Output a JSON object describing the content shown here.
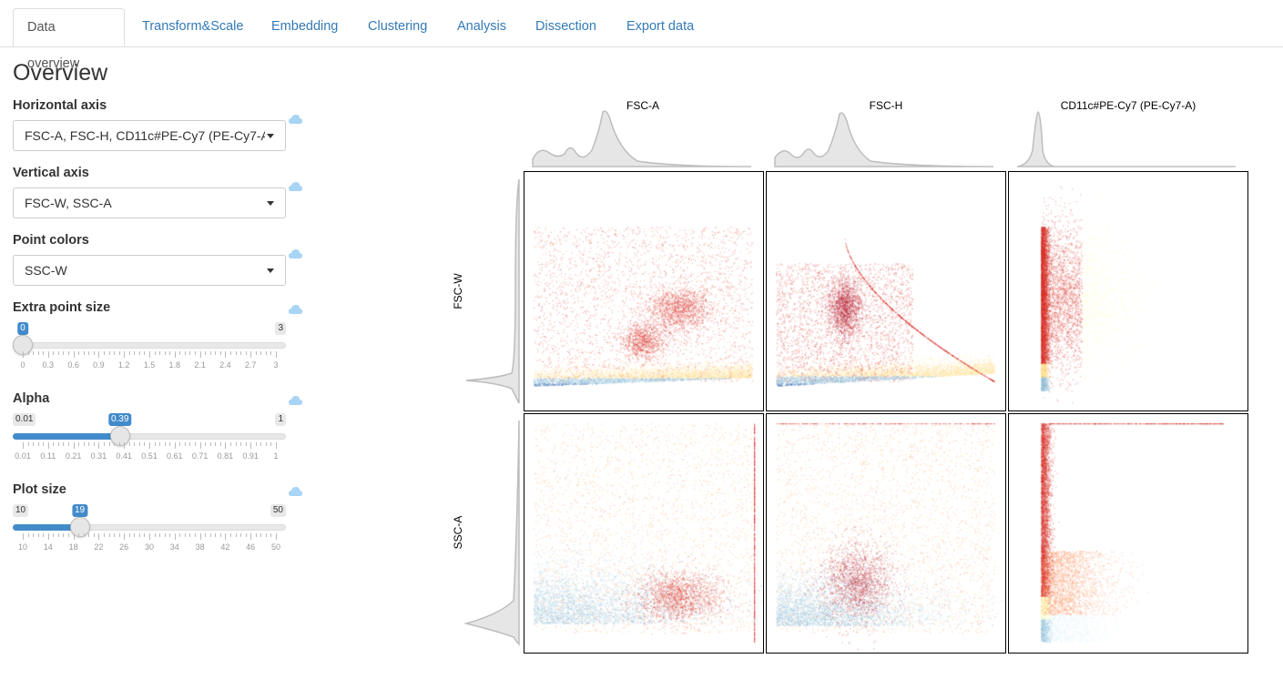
{
  "tabs": [
    {
      "label": "Data overview",
      "active": true
    },
    {
      "label": "Transform&Scale",
      "active": false
    },
    {
      "label": "Embedding",
      "active": false
    },
    {
      "label": "Clustering",
      "active": false
    },
    {
      "label": "Analysis",
      "active": false
    },
    {
      "label": "Dissection",
      "active": false
    },
    {
      "label": "Export data",
      "active": false
    }
  ],
  "sidebar": {
    "title": "Overview",
    "horizontal_axis": {
      "label": "Horizontal axis",
      "value": "FSC-A, FSC-H, CD11c#PE-Cy7 (PE-Cy7-A)",
      "help_icon": "help-cloud-icon"
    },
    "vertical_axis": {
      "label": "Vertical axis",
      "value": "FSC-W, SSC-A",
      "help_icon": "help-cloud-icon"
    },
    "point_colors": {
      "label": "Point colors",
      "value": "SSC-W",
      "help_icon": "help-cloud-icon"
    },
    "extra_point_size": {
      "label": "Extra point size",
      "min": "0",
      "max": "3",
      "value": "0",
      "ticks": [
        "0",
        "0.3",
        "0.6",
        "0.9",
        "1.2",
        "1.5",
        "1.8",
        "2.1",
        "2.4",
        "2.7",
        "3"
      ]
    },
    "alpha": {
      "label": "Alpha",
      "min": "0.01",
      "max": "1",
      "value": "0.39",
      "ticks": [
        "0.01",
        "0.11",
        "0.21",
        "0.31",
        "0.41",
        "0.51",
        "0.61",
        "0.71",
        "0.81",
        "0.91",
        "1"
      ]
    },
    "plot_size": {
      "label": "Plot size",
      "min": "10",
      "max": "50",
      "value": "19",
      "ticks": [
        "10",
        "14",
        "18",
        "22",
        "26",
        "30",
        "34",
        "38",
        "42",
        "46",
        "50"
      ]
    }
  },
  "plot": {
    "columns": [
      "FSC-A",
      "FSC-H",
      "CD11c#PE-Cy7 (PE-Cy7-A)"
    ],
    "rows": [
      "FSC-W",
      "SSC-A"
    ],
    "palette": [
      "#4575b4",
      "#91bfdb",
      "#e0f3f8",
      "#ffffbf",
      "#fee090",
      "#fc8d59",
      "#d73027",
      "#b2182b"
    ]
  }
}
